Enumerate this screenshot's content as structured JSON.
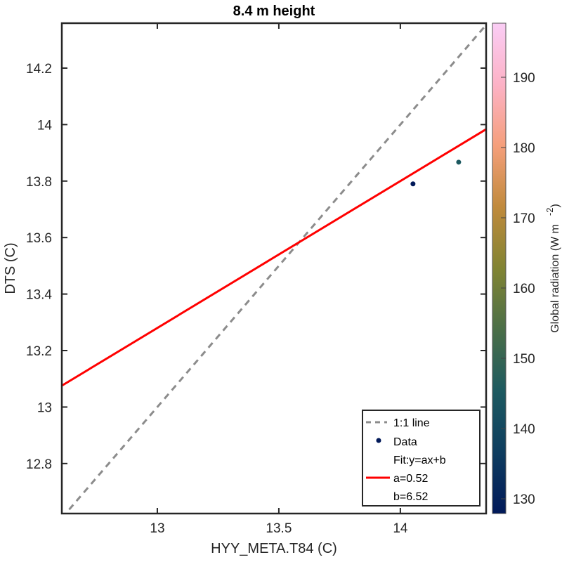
{
  "chart_data": {
    "type": "scatter",
    "title": "8.4 m height",
    "xlabel": "HYY_META.T84 (C)",
    "ylabel": "DTS (C)",
    "xlim": [
      12.607,
      14.353
    ],
    "ylim": [
      12.623,
      14.359
    ],
    "xticks": [
      13,
      13.5,
      14
    ],
    "xtick_labels": [
      "13",
      "13.5",
      "14"
    ],
    "yticks": [
      12.8,
      13,
      13.2,
      13.4,
      13.6,
      13.8,
      14,
      14.2
    ],
    "ytick_labels": [
      "12.8",
      "13",
      "13.2",
      "13.4",
      "13.6",
      "13.8",
      "14",
      "14.2"
    ],
    "grid": false,
    "series": [
      {
        "name": "Data",
        "kind": "scatter",
        "points": [
          {
            "x": 14.052,
            "y": 13.79,
            "c": 128
          },
          {
            "x": 14.24,
            "y": 13.867,
            "c": 145
          }
        ]
      },
      {
        "name": "1:1 line",
        "kind": "line",
        "style": "dashed",
        "color": "#8c8c8c",
        "slope": 1,
        "intercept": 0
      },
      {
        "name": "Fit:y=ax+b",
        "kind": "line",
        "style": "solid",
        "color": "#ff0000",
        "slope": 0.52,
        "intercept": 6.52
      }
    ],
    "colorbar": {
      "label": "Global radiation (W m",
      "label_superscript": "-2",
      "label_close": ")",
      "range": [
        127.9,
        197.7
      ],
      "ticks": [
        130,
        140,
        150,
        160,
        170,
        180,
        190
      ],
      "tick_labels": [
        "130",
        "140",
        "150",
        "160",
        "170",
        "180",
        "190"
      ],
      "colormap_stops": [
        "#011959",
        "#0e3d5f",
        "#1d5a60",
        "#4b6f48",
        "#818433",
        "#c08a3c",
        "#f59f7b",
        "#fcb2c6",
        "#facdf5"
      ]
    },
    "legend": {
      "placement": "bottom-right",
      "entries": [
        {
          "label": "1:1 line",
          "marker": "dashed-line",
          "color": "#8c8c8c"
        },
        {
          "label": "Data",
          "marker": "dot",
          "color": "#011959"
        },
        {
          "label": "Fit:y=ax+b",
          "marker": "none"
        },
        {
          "label": "a=0.52",
          "marker": "solid-line",
          "color": "#ff0000"
        },
        {
          "label": "b=6.52",
          "marker": "none"
        }
      ]
    }
  }
}
